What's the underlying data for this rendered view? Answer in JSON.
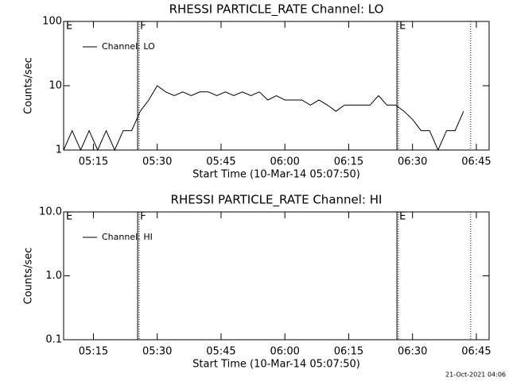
{
  "chart_data": [
    {
      "type": "line",
      "title": "RHESSI PARTICLE_RATE Channel: LO",
      "xlabel": "Start Time (10-Mar-14 05:07:50)",
      "ylabel": "Counts/sec",
      "log_y": true,
      "ylim": [
        1,
        100
      ],
      "yticks": [
        1,
        10,
        100
      ],
      "xlim": [
        "05:08",
        "06:48"
      ],
      "xticks": [
        "05:15",
        "05:30",
        "05:45",
        "06:00",
        "06:15",
        "06:30",
        "06:45"
      ],
      "legend": "upper left",
      "x": [
        "05:08",
        "05:10",
        "05:12",
        "05:14",
        "05:16",
        "05:18",
        "05:20",
        "05:22",
        "05:24",
        "05:26",
        "05:28",
        "05:30",
        "05:32",
        "05:34",
        "05:36",
        "05:38",
        "05:40",
        "05:42",
        "05:44",
        "05:46",
        "05:48",
        "05:50",
        "05:52",
        "05:54",
        "05:56",
        "05:58",
        "06:00",
        "06:02",
        "06:04",
        "06:06",
        "06:08",
        "06:10",
        "06:12",
        "06:14",
        "06:16",
        "06:18",
        "06:20",
        "06:22",
        "06:24",
        "06:26",
        "06:28",
        "06:30",
        "06:32",
        "06:34",
        "06:36",
        "06:38",
        "06:40",
        "06:42"
      ],
      "series": [
        {
          "name": "Channel: LO",
          "color": "#000000",
          "values": [
            1,
            2,
            1,
            2,
            1,
            2,
            1,
            2,
            2,
            4,
            6,
            10,
            8,
            7,
            8,
            7,
            8,
            8,
            7,
            8,
            7,
            8,
            7,
            8,
            6,
            7,
            6,
            6,
            6,
            5,
            6,
            5,
            4,
            5,
            5,
            5,
            5,
            7,
            5,
            5,
            4,
            3,
            2,
            2,
            1,
            2,
            2,
            4
          ]
        }
      ],
      "vlines": [
        {
          "x": "05:25:24",
          "style": "solid"
        },
        {
          "x": "05:25:45",
          "style": "dotted"
        },
        {
          "x": "06:26:20",
          "style": "solid"
        },
        {
          "x": "06:26:40",
          "style": "dotted"
        },
        {
          "x": "06:43:40",
          "style": "dotted"
        }
      ],
      "annotations": [
        {
          "x": "05:08",
          "label": "E"
        },
        {
          "x": "05:25:24",
          "label": "F"
        },
        {
          "x": "06:26:20",
          "label": "E"
        }
      ]
    },
    {
      "type": "line",
      "title": "RHESSI PARTICLE_RATE Channel: HI",
      "xlabel": "Start Time (10-Mar-14 05:07:50)",
      "ylabel": "Counts/sec",
      "log_y": true,
      "ylim": [
        0.1,
        10
      ],
      "yticks": [
        {
          "value": 0.1,
          "label": "0.1"
        },
        {
          "value": 1,
          "label": "1.0"
        },
        {
          "value": 10,
          "label": "10.0"
        }
      ],
      "xlim": [
        "05:08",
        "06:48"
      ],
      "xticks": [
        "05:15",
        "05:30",
        "05:45",
        "06:00",
        "06:15",
        "06:30",
        "06:45"
      ],
      "legend": "upper left",
      "x": [],
      "series": [
        {
          "name": "Channel: HI",
          "color": "#000000",
          "values": []
        }
      ],
      "vlines": [
        {
          "x": "05:25:24",
          "style": "solid"
        },
        {
          "x": "05:25:45",
          "style": "dotted"
        },
        {
          "x": "06:26:20",
          "style": "solid"
        },
        {
          "x": "06:26:40",
          "style": "dotted"
        },
        {
          "x": "06:43:40",
          "style": "dotted"
        }
      ],
      "annotations": [
        {
          "x": "05:08",
          "label": "E"
        },
        {
          "x": "05:25:24",
          "label": "F"
        },
        {
          "x": "06:26:20",
          "label": "E"
        }
      ]
    }
  ],
  "footer": "21-Oct-2021 04:06"
}
